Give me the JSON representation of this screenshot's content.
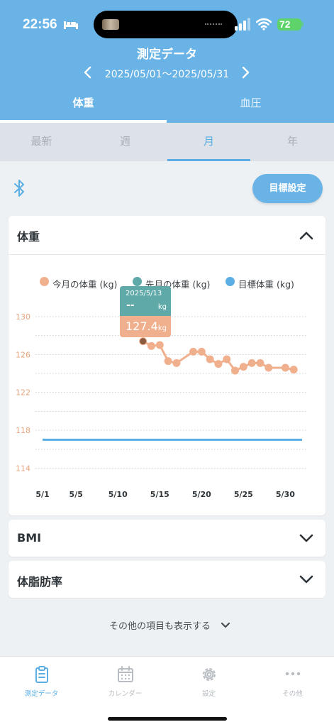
{
  "status_bar": {
    "time": "22:56",
    "battery": "72"
  },
  "header": {
    "title": "測定データ",
    "date_range": "2025/05/01〜2025/05/31"
  },
  "main_tabs": [
    {
      "label": "体重",
      "active": true
    },
    {
      "label": "血圧",
      "active": false
    }
  ],
  "period_tabs": [
    {
      "label": "最新",
      "active": false
    },
    {
      "label": "週",
      "active": false
    },
    {
      "label": "月",
      "active": true
    },
    {
      "label": "年",
      "active": false
    }
  ],
  "toolbar": {
    "goal_button": "目標設定"
  },
  "weight_card": {
    "title": "体重",
    "legend": [
      "今月の体重 (kg)",
      "先月の体重 (kg)",
      "目標体重 (kg)"
    ],
    "tooltip": {
      "date": "2025/5/13",
      "prev_value": "--",
      "unit": "kg",
      "value": "127.4"
    }
  },
  "chart_data": {
    "type": "line",
    "x_ticks": [
      "5/1",
      "5/5",
      "5/10",
      "5/15",
      "5/20",
      "5/25",
      "5/30"
    ],
    "y_ticks": [
      130,
      126,
      122,
      118,
      114
    ],
    "ylim": [
      113.2,
      131.2
    ],
    "grid": true,
    "legend_position": "top",
    "series": [
      {
        "name": "今月の体重 (kg)",
        "color": "#f1b08d",
        "x": [
          13,
          14,
          15,
          16,
          17,
          19,
          20,
          21,
          22,
          23,
          24,
          25,
          26,
          27,
          28,
          30,
          31
        ],
        "y": [
          127.4,
          126.9,
          127.0,
          125.3,
          125.1,
          126.3,
          126.3,
          125.5,
          125.0,
          125.5,
          124.3,
          124.7,
          125.1,
          125.1,
          124.6,
          124.6,
          124.4
        ]
      },
      {
        "name": "先月の体重 (kg)",
        "color": "#5fa9a8",
        "x": [],
        "y": []
      },
      {
        "name": "目標体重 (kg)",
        "color": "#5aaee4",
        "x": [
          1,
          32
        ],
        "y": [
          117.0,
          117.0
        ]
      }
    ],
    "x_range": [
      1,
      32
    ]
  },
  "bmi_card": {
    "title": "BMI"
  },
  "fat_card": {
    "title": "体脂肪率"
  },
  "show_more": {
    "label": "その他の項目も表示する"
  },
  "bottom_nav": [
    {
      "label": "測定データ",
      "active": true
    },
    {
      "label": "カレンダー",
      "active": false
    },
    {
      "label": "設定",
      "active": false
    },
    {
      "label": "その他",
      "active": false
    }
  ]
}
